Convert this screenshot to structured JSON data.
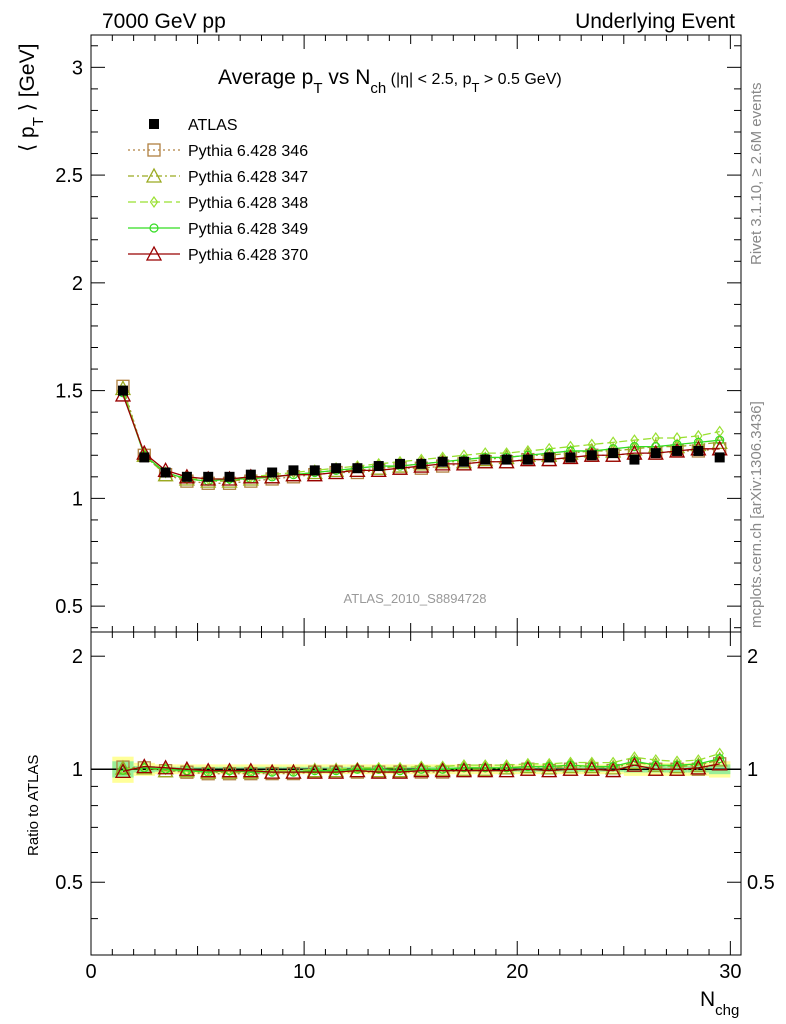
{
  "header": {
    "left": "7000 GeV pp",
    "right": "Underlying Event"
  },
  "side_labels": {
    "top": "Rivet 3.1.10, ≥ 2.6M events",
    "bottom": "mcplots.cern.ch [arXiv:1306.3436]"
  },
  "watermark": "ATLAS_2010_S8894728",
  "chart_data": {
    "type": "line",
    "title": {
      "pre": "Average p",
      "sub1": "T",
      "mid": " vs N",
      "sub2": "ch",
      "small_pre": " (|η| < 2.5, p",
      "small_sub": "T",
      "small_post": " > 0.5 GeV)"
    },
    "xlabel": {
      "main": "N",
      "sub": "chg"
    },
    "ylabel": {
      "pre": "⟨ p",
      "sub": "T",
      "post": " ⟩ [GeV]"
    },
    "ratio_ylabel": "Ratio to ATLAS",
    "xlim": [
      0,
      30.5
    ],
    "ylim": [
      0.38,
      3.15
    ],
    "ratio_ylim": [
      0.32,
      2.32
    ],
    "x_ticks": [
      "0",
      "10",
      "20",
      "30"
    ],
    "y_ticks": [
      "0.5",
      "1",
      "1.5",
      "2",
      "2.5",
      "3"
    ],
    "ratio_y_ticks": [
      "0.5",
      "1",
      "2"
    ],
    "grid": false,
    "legend_position": "top-left",
    "x": [
      1.5,
      2.5,
      3.5,
      4.5,
      5.5,
      6.5,
      7.5,
      8.5,
      9.5,
      10.5,
      11.5,
      12.5,
      13.5,
      14.5,
      15.5,
      16.5,
      17.5,
      18.5,
      19.5,
      20.5,
      21.5,
      22.5,
      23.5,
      24.5,
      25.5,
      26.5,
      27.5,
      28.5,
      29.5
    ],
    "data": {
      "name": "ATLAS",
      "values": [
        1.5,
        1.19,
        1.12,
        1.1,
        1.1,
        1.1,
        1.11,
        1.12,
        1.13,
        1.13,
        1.14,
        1.14,
        1.15,
        1.16,
        1.16,
        1.17,
        1.17,
        1.18,
        1.18,
        1.18,
        1.19,
        1.19,
        1.2,
        1.21,
        1.18,
        1.21,
        1.22,
        1.22,
        1.19
      ],
      "ratio_band_outer": [
        0.08,
        0.04,
        0.03,
        0.03,
        0.03,
        0.03,
        0.03,
        0.03,
        0.03,
        0.03,
        0.03,
        0.03,
        0.03,
        0.03,
        0.03,
        0.03,
        0.03,
        0.03,
        0.03,
        0.03,
        0.03,
        0.03,
        0.03,
        0.03,
        0.04,
        0.04,
        0.04,
        0.04,
        0.05
      ],
      "ratio_band_inner": [
        0.05,
        0.02,
        0.015,
        0.015,
        0.015,
        0.015,
        0.015,
        0.015,
        0.015,
        0.015,
        0.015,
        0.015,
        0.015,
        0.015,
        0.015,
        0.015,
        0.015,
        0.015,
        0.015,
        0.015,
        0.015,
        0.015,
        0.015,
        0.015,
        0.02,
        0.02,
        0.02,
        0.02,
        0.03
      ],
      "color": "#000000"
    },
    "series": [
      {
        "name": "Pythia 6.428 346",
        "color": "#b08040",
        "dash": "2,3",
        "marker": "square",
        "values": [
          1.52,
          1.2,
          1.11,
          1.08,
          1.07,
          1.07,
          1.08,
          1.09,
          1.1,
          1.11,
          1.12,
          1.12,
          1.13,
          1.14,
          1.14,
          1.15,
          1.16,
          1.17,
          1.17,
          1.18,
          1.18,
          1.19,
          1.2,
          1.2,
          1.21,
          1.21,
          1.22,
          1.22,
          1.23
        ]
      },
      {
        "name": "Pythia 6.428 347",
        "color": "#9aaa20",
        "dash": "6,3,2,3",
        "marker": "triangle",
        "values": [
          1.51,
          1.2,
          1.11,
          1.09,
          1.08,
          1.08,
          1.09,
          1.1,
          1.11,
          1.12,
          1.13,
          1.13,
          1.14,
          1.15,
          1.16,
          1.17,
          1.17,
          1.18,
          1.19,
          1.2,
          1.2,
          1.21,
          1.22,
          1.22,
          1.23,
          1.24,
          1.24,
          1.25,
          1.26
        ]
      },
      {
        "name": "Pythia 6.428 348",
        "color": "#99e030",
        "dash": "8,4",
        "marker": "diamond",
        "values": [
          1.5,
          1.2,
          1.12,
          1.09,
          1.09,
          1.09,
          1.1,
          1.11,
          1.12,
          1.13,
          1.14,
          1.15,
          1.16,
          1.17,
          1.18,
          1.19,
          1.2,
          1.21,
          1.21,
          1.22,
          1.23,
          1.24,
          1.25,
          1.26,
          1.27,
          1.28,
          1.28,
          1.29,
          1.31
        ]
      },
      {
        "name": "Pythia 6.428 349",
        "color": "#33dd22",
        "dash": "",
        "marker": "circle",
        "values": [
          1.49,
          1.2,
          1.12,
          1.09,
          1.08,
          1.09,
          1.09,
          1.1,
          1.11,
          1.12,
          1.13,
          1.14,
          1.15,
          1.15,
          1.16,
          1.17,
          1.18,
          1.19,
          1.19,
          1.2,
          1.21,
          1.22,
          1.22,
          1.23,
          1.24,
          1.24,
          1.25,
          1.26,
          1.27
        ]
      },
      {
        "name": "Pythia 6.428 370",
        "color": "#990000",
        "dash": "",
        "marker": "triangle",
        "values": [
          1.48,
          1.21,
          1.13,
          1.1,
          1.09,
          1.09,
          1.1,
          1.1,
          1.11,
          1.11,
          1.12,
          1.13,
          1.13,
          1.14,
          1.15,
          1.16,
          1.16,
          1.17,
          1.17,
          1.18,
          1.18,
          1.19,
          1.2,
          1.2,
          1.21,
          1.21,
          1.22,
          1.23,
          1.23
        ]
      }
    ]
  }
}
